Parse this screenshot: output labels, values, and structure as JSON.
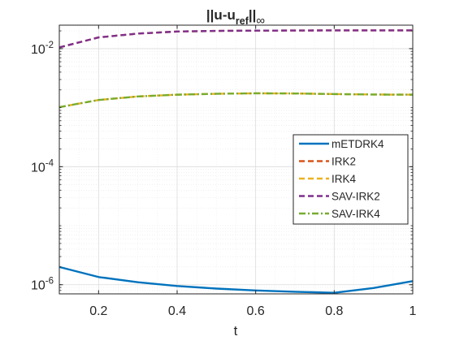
{
  "chart_data": {
    "type": "line",
    "title": {
      "base": "||u-u",
      "subscript": "ref",
      "after": "||",
      "sub_after": "∞"
    },
    "xlabel": "t",
    "ylabel": "",
    "xlim": [
      0.1,
      1.0
    ],
    "ylim": [
      7e-07,
      0.025
    ],
    "yscale": "log",
    "grid": true,
    "minor_grid": true,
    "legend_position": "center-right",
    "x_ticks": [
      {
        "value": 0.2,
        "label": "0.2"
      },
      {
        "value": 0.4,
        "label": "0.4"
      },
      {
        "value": 0.6,
        "label": "0.6"
      },
      {
        "value": 0.8,
        "label": "0.8"
      },
      {
        "value": 1.0,
        "label": "1"
      }
    ],
    "y_ticks": [
      {
        "value": 1e-06,
        "base": "10",
        "exp": "-6"
      },
      {
        "value": 0.0001,
        "base": "10",
        "exp": "-4"
      },
      {
        "value": 0.01,
        "base": "10",
        "exp": "-2"
      }
    ],
    "x": [
      0.1,
      0.2,
      0.3,
      0.4,
      0.5,
      0.6,
      0.7,
      0.8,
      0.9,
      1.0
    ],
    "series": [
      {
        "name": "mETDRK4",
        "color": "#0072BD",
        "dash": "solid",
        "values": [
          2e-06,
          1.35e-06,
          1.1e-06,
          9.5e-07,
          8.6e-07,
          8e-07,
          7.6e-07,
          7.3e-07,
          8.8e-07,
          1.15e-06
        ]
      },
      {
        "name": "IRK2",
        "color": "#D95319",
        "dash": "dashed",
        "values": [
          0.0105,
          0.0155,
          0.018,
          0.0195,
          0.02,
          0.0202,
          0.0203,
          0.0204,
          0.0204,
          0.0204
        ]
      },
      {
        "name": "IRK4",
        "color": "#EDB120",
        "dash": "dashed",
        "values": [
          0.00102,
          0.00135,
          0.00155,
          0.00166,
          0.00172,
          0.00175,
          0.00174,
          0.0017,
          0.00167,
          0.00166
        ]
      },
      {
        "name": "SAV-IRK2",
        "color": "#7E2F8E",
        "dash": "dashed",
        "values": [
          0.0105,
          0.0155,
          0.018,
          0.0195,
          0.02,
          0.0202,
          0.0203,
          0.0204,
          0.0204,
          0.0204
        ]
      },
      {
        "name": "SAV-IRK4",
        "color": "#77AC30",
        "dash": "dashdot",
        "values": [
          0.00102,
          0.00135,
          0.00155,
          0.00166,
          0.00172,
          0.00175,
          0.00174,
          0.0017,
          0.00167,
          0.00166
        ]
      }
    ]
  }
}
